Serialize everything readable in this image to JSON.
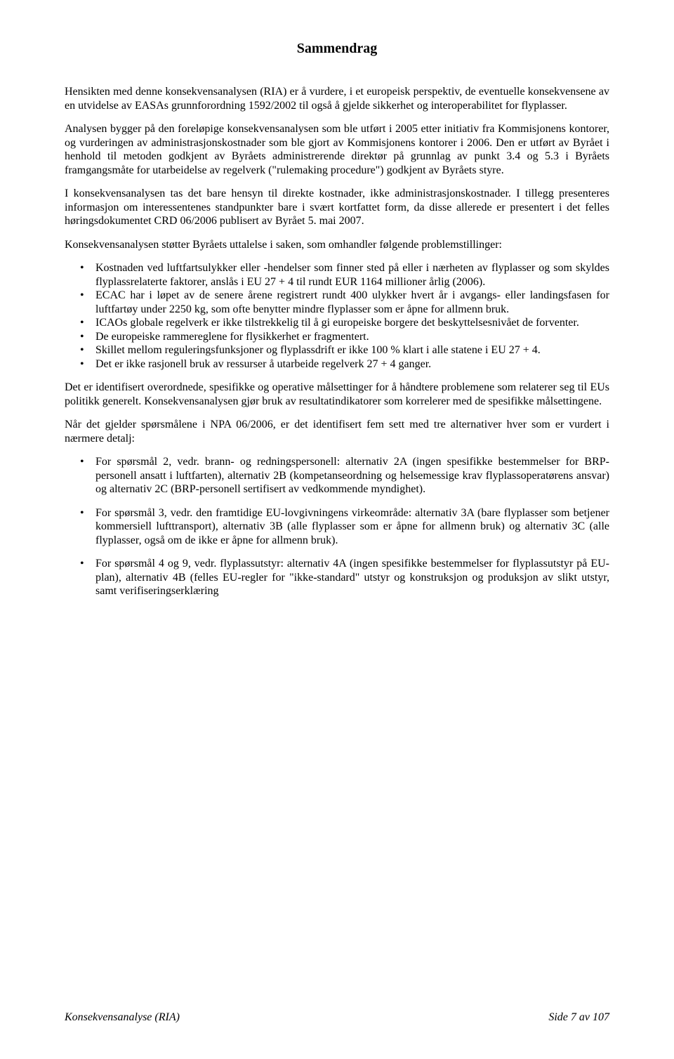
{
  "title": "Sammendrag",
  "paragraphs": {
    "p1": "Hensikten med denne konsekvensanalysen (RIA) er å vurdere, i et europeisk perspektiv, de eventuelle konsekvensene av en utvidelse av EASAs grunnforordning 1592/2002 til også å gjelde sikkerhet og interoperabilitet for flyplasser.",
    "p2": "Analysen bygger på den foreløpige konsekvensanalysen som ble utført i 2005 etter initiativ fra Kommisjonens kontorer, og vurderingen av administrasjonskostnader som ble gjort av Kommisjonens kontorer i 2006. Den er utført av Byrået i henhold til metoden godkjent av Byråets administrerende direktør på grunnlag av punkt 3.4 og 5.3 i Byråets framgangsmåte for utarbeidelse av regelverk (\"rulemaking procedure\") godkjent av Byråets styre.",
    "p3": "I konsekvensanalysen tas det bare hensyn til direkte kostnader, ikke administrasjonskostnader. I tillegg presenteres informasjon om interessentenes standpunkter bare i svært kortfattet form, da disse allerede er presentert i det felles høringsdokumentet CRD 06/2006 publisert av Byrået 5. mai 2007.",
    "p4": "Konsekvensanalysen støtter Byråets uttalelse i saken, som omhandler følgende problemstillinger:",
    "p5": "Det er identifisert overordnede, spesifikke og operative målsettinger for å håndtere problemene som relaterer seg til EUs politikk generelt. Konsekvensanalysen gjør bruk av resultatindikatorer som korrelerer med de spesifikke målsettingene.",
    "p6": "Når det gjelder spørsmålene i NPA 06/2006, er det identifisert fem sett med tre alternativer hver som er vurdert i nærmere detalj:"
  },
  "list1": [
    "Kostnaden ved luftfartsulykker eller -hendelser som finner sted på eller i nærheten av flyplasser og som skyldes flyplassrelaterte faktorer, anslås i EU 27 + 4 til rundt EUR 1164 millioner årlig (2006).",
    "ECAC har i løpet av de senere årene registrert rundt 400 ulykker hvert år i avgangs- eller landingsfasen for luftfartøy under 2250 kg, som ofte benytter mindre flyplasser som er åpne for allmenn bruk.",
    "ICAOs globale regelverk er ikke tilstrekkelig til å gi europeiske borgere det beskyttelsesnivået de forventer.",
    "De europeiske rammereglene for flysikkerhet er fragmentert.",
    "Skillet mellom reguleringsfunksjoner og flyplassdrift er ikke 100 % klart i alle statene i EU 27 + 4.",
    "Det er ikke rasjonell bruk av ressurser å utarbeide regelverk 27 + 4 ganger."
  ],
  "list2": [
    "For spørsmål 2, vedr. brann- og redningspersonell: alternativ 2A (ingen spesifikke bestemmelser for BRP-personell ansatt i luftfarten), alternativ 2B (kompetanseordning og helsemessige krav flyplassoperatørens ansvar) og alternativ 2C (BRP-personell sertifisert av vedkommende myndighet).",
    "For spørsmål 3, vedr. den framtidige EU-lovgivningens virkeområde: alternativ 3A (bare flyplasser som betjener kommersiell lufttransport), alternativ 3B (alle flyplasser som er åpne for allmenn bruk) og alternativ 3C (alle flyplasser, også om de ikke er åpne for allmenn bruk).",
    "For spørsmål 4 og 9, vedr. flyplassutstyr: alternativ 4A (ingen spesifikke bestemmelser for flyplassutstyr på EU-plan), alternativ 4B (felles EU-regler for \"ikke-standard\" utstyr og konstruksjon og produksjon av slikt utstyr, samt verifiseringserklæring"
  ],
  "footer": {
    "left": "Konsekvensanalyse (RIA)",
    "right": "Side 7 av 107"
  }
}
